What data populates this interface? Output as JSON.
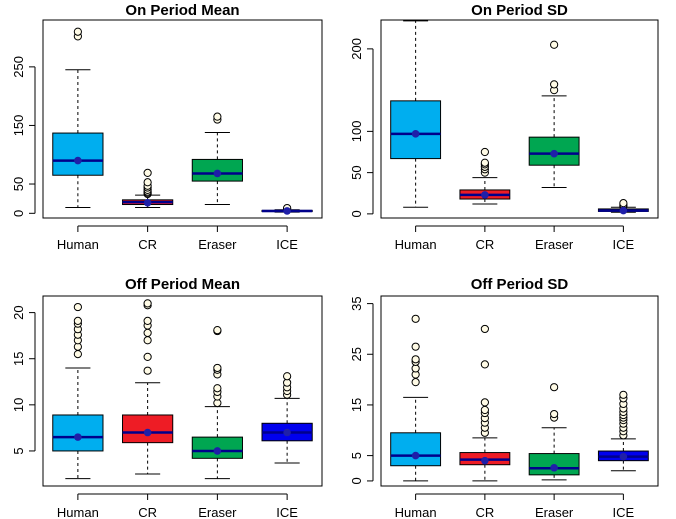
{
  "chart_data": [
    {
      "type": "boxplot",
      "title": "On Period Mean",
      "categories": [
        "Human",
        "CR",
        "Eraser",
        "ICE"
      ],
      "colors": [
        "#00aeef",
        "#ee1c25",
        "#00a651",
        "#0000ee"
      ],
      "yticks": [
        0,
        50,
        150,
        250
      ],
      "ylim": [
        -8,
        330
      ],
      "boxes": [
        {
          "whisker_low": 10,
          "q1": 65,
          "median": 90,
          "q3": 137,
          "whisker_high": 245,
          "mean": 90,
          "outliers": [
            302,
            310
          ]
        },
        {
          "whisker_low": 10,
          "q1": 15,
          "median": 19,
          "q3": 23,
          "whisker_high": 31,
          "mean": 18,
          "outliers": [
            33,
            35,
            37,
            40,
            44,
            47,
            53,
            69
          ]
        },
        {
          "whisker_low": 15,
          "q1": 55,
          "median": 68,
          "q3": 92,
          "whisker_high": 138,
          "mean": 68,
          "outliers": [
            160,
            165
          ]
        },
        {
          "whisker_low": 2,
          "q1": 3,
          "median": 4,
          "q3": 5,
          "whisker_high": 6,
          "mean": 4,
          "outliers": [
            8,
            9
          ]
        }
      ]
    },
    {
      "type": "boxplot",
      "title": "On Period SD",
      "categories": [
        "Human",
        "CR",
        "Eraser",
        "ICE"
      ],
      "colors": [
        "#00aeef",
        "#ee1c25",
        "#00a651",
        "#0000ee"
      ],
      "yticks": [
        0,
        50,
        100,
        200
      ],
      "ylim": [
        -5,
        235
      ],
      "boxes": [
        {
          "whisker_low": 8,
          "q1": 67,
          "median": 97,
          "q3": 137,
          "whisker_high": 234,
          "mean": 97,
          "outliers": []
        },
        {
          "whisker_low": 12,
          "q1": 18,
          "median": 23,
          "q3": 29,
          "whisker_high": 44,
          "mean": 23,
          "outliers": [
            50,
            54,
            57,
            60,
            62,
            75
          ]
        },
        {
          "whisker_low": 32,
          "q1": 59,
          "median": 73,
          "q3": 93,
          "whisker_high": 143,
          "mean": 73,
          "outliers": [
            150,
            157,
            205
          ]
        },
        {
          "whisker_low": 2,
          "q1": 3,
          "median": 4,
          "q3": 6,
          "whisker_high": 8,
          "mean": 4,
          "outliers": [
            9,
            11,
            13
          ]
        }
      ]
    },
    {
      "type": "boxplot",
      "title": "Off Period Mean",
      "categories": [
        "Human",
        "CR",
        "Eraser",
        "ICE"
      ],
      "colors": [
        "#00aeef",
        "#ee1c25",
        "#00a651",
        "#0000ee"
      ],
      "yticks": [
        5,
        10,
        15,
        20
      ],
      "ylim": [
        1.2,
        21.8
      ],
      "boxes": [
        {
          "whisker_low": 2,
          "q1": 5,
          "median": 6.5,
          "q3": 8.9,
          "whisker_high": 14,
          "mean": 6.5,
          "outliers": [
            15.5,
            16.3,
            17,
            17.6,
            18.2,
            18.8,
            19.1,
            20.6
          ]
        },
        {
          "whisker_low": 2.5,
          "q1": 5.9,
          "median": 7,
          "q3": 8.9,
          "whisker_high": 12.4,
          "mean": 7,
          "outliers": [
            13.7,
            15.2,
            17,
            17.8,
            18.6,
            19.1,
            20.8,
            21
          ]
        },
        {
          "whisker_low": 2,
          "q1": 4.2,
          "median": 5,
          "q3": 6.5,
          "whisker_high": 9.8,
          "mean": 5,
          "outliers": [
            10.2,
            10.9,
            11.4,
            11.8,
            13.3,
            13.8,
            14,
            18,
            18.1
          ]
        },
        {
          "whisker_low": 3.7,
          "q1": 6.1,
          "median": 7,
          "q3": 8,
          "whisker_high": 10.7,
          "mean": 7,
          "outliers": [
            11.1,
            11.5,
            11.9,
            12.4,
            13.1
          ]
        }
      ]
    },
    {
      "type": "boxplot",
      "title": "Off Period SD",
      "categories": [
        "Human",
        "CR",
        "Eraser",
        "ICE"
      ],
      "colors": [
        "#00aeef",
        "#ee1c25",
        "#00a651",
        "#0000ee"
      ],
      "yticks": [
        0,
        5,
        15,
        25,
        35
      ],
      "ylim": [
        -1,
        36.5
      ],
      "boxes": [
        {
          "whisker_low": 0,
          "q1": 3,
          "median": 5,
          "q3": 9.5,
          "whisker_high": 16.5,
          "mean": 5,
          "outliers": [
            19.5,
            21,
            22.2,
            23.5,
            24,
            26.5,
            32
          ]
        },
        {
          "whisker_low": 0,
          "q1": 3.2,
          "median": 4.2,
          "q3": 5.6,
          "whisker_high": 8.5,
          "mean": 4,
          "outliers": [
            9.5,
            10.5,
            11.5,
            12.4,
            13.4,
            14,
            15.5,
            23,
            30
          ]
        },
        {
          "whisker_low": 0.2,
          "q1": 1.2,
          "median": 2.5,
          "q3": 5.4,
          "whisker_high": 10.5,
          "mean": 2.6,
          "outliers": [
            12.5,
            13.2,
            18.5
          ]
        },
        {
          "whisker_low": 2,
          "q1": 4,
          "median": 4.8,
          "q3": 5.9,
          "whisker_high": 8.3,
          "mean": 4.8,
          "outliers": [
            9,
            9.8,
            10.5,
            11.3,
            12,
            12.5,
            13,
            13.6,
            14.3,
            15.2,
            16.3,
            17
          ]
        }
      ]
    }
  ]
}
